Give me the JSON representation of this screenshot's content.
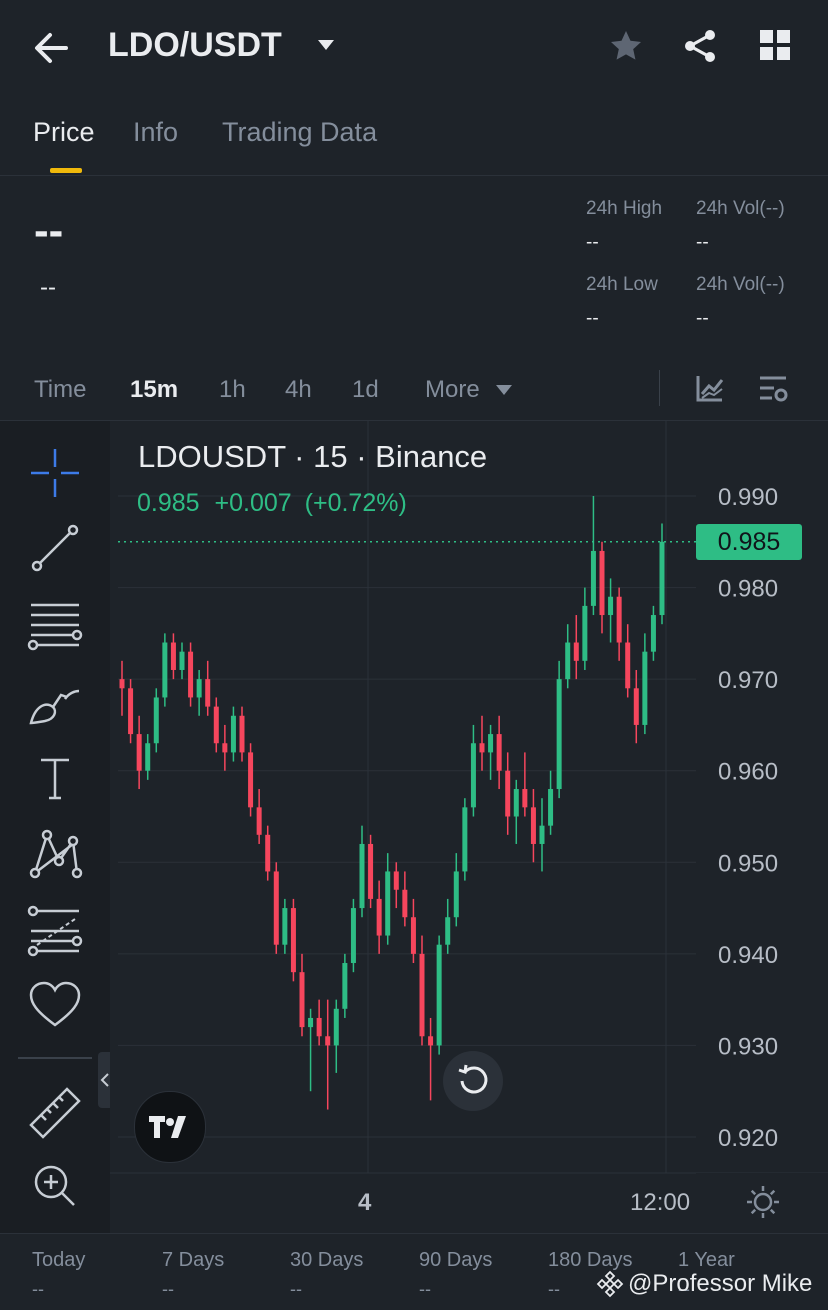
{
  "header": {
    "pair": "LDO/USDT",
    "icons": [
      "back-arrow-icon",
      "dropdown-caret-icon",
      "star-icon",
      "share-icon",
      "grid-icon"
    ]
  },
  "tabs": [
    {
      "label": "Price",
      "active": true
    },
    {
      "label": "Info",
      "active": false
    },
    {
      "label": "Trading Data",
      "active": false
    }
  ],
  "stats": {
    "price": "--",
    "change": "--",
    "high_label": "24h High",
    "high_value": "--",
    "vol1_label": "24h Vol(--)",
    "vol1_value": "--",
    "low_label": "24h Low",
    "low_value": "--",
    "vol2_label": "24h Vol(--)",
    "vol2_value": "--"
  },
  "intervals": [
    {
      "label": "Time",
      "active": false
    },
    {
      "label": "15m",
      "active": true
    },
    {
      "label": "1h",
      "active": false
    },
    {
      "label": "4h",
      "active": false
    },
    {
      "label": "1d",
      "active": false
    },
    {
      "label": "More",
      "active": false
    }
  ],
  "chart": {
    "symbol_line": "LDOUSDT · 15 · Binance",
    "last": "0.985",
    "change": "+0.007",
    "change_pct": "(+0.72%)",
    "price_tag": "0.985",
    "x_labels": [
      "4",
      "12:00"
    ],
    "watermark": "TV"
  },
  "chart_data": {
    "type": "candlestick",
    "title": "LDOUSDT · 15 · Binance",
    "ylim": [
      0.915,
      0.993
    ],
    "yticks": [
      "0.990",
      "0.980",
      "0.970",
      "0.960",
      "0.950",
      "0.940",
      "0.930",
      "0.920"
    ],
    "x_ticks": [
      "4",
      "12:00"
    ],
    "last_price": 0.985,
    "up_color": "#2ebd85",
    "down_color": "#f6465d",
    "candles": [
      [
        0.97,
        0.972,
        0.966,
        0.969
      ],
      [
        0.969,
        0.97,
        0.963,
        0.964
      ],
      [
        0.964,
        0.966,
        0.958,
        0.96
      ],
      [
        0.96,
        0.964,
        0.959,
        0.963
      ],
      [
        0.963,
        0.969,
        0.962,
        0.968
      ],
      [
        0.968,
        0.975,
        0.967,
        0.974
      ],
      [
        0.974,
        0.975,
        0.97,
        0.971
      ],
      [
        0.971,
        0.974,
        0.97,
        0.973
      ],
      [
        0.973,
        0.974,
        0.967,
        0.968
      ],
      [
        0.968,
        0.971,
        0.966,
        0.97
      ],
      [
        0.97,
        0.972,
        0.966,
        0.967
      ],
      [
        0.967,
        0.968,
        0.962,
        0.963
      ],
      [
        0.963,
        0.965,
        0.96,
        0.962
      ],
      [
        0.962,
        0.967,
        0.961,
        0.966
      ],
      [
        0.966,
        0.967,
        0.961,
        0.962
      ],
      [
        0.962,
        0.963,
        0.955,
        0.956
      ],
      [
        0.956,
        0.958,
        0.952,
        0.953
      ],
      [
        0.953,
        0.954,
        0.948,
        0.949
      ],
      [
        0.949,
        0.95,
        0.94,
        0.941
      ],
      [
        0.941,
        0.946,
        0.94,
        0.945
      ],
      [
        0.945,
        0.946,
        0.937,
        0.938
      ],
      [
        0.938,
        0.94,
        0.931,
        0.932
      ],
      [
        0.932,
        0.934,
        0.925,
        0.933
      ],
      [
        0.933,
        0.935,
        0.93,
        0.931
      ],
      [
        0.931,
        0.935,
        0.923,
        0.93
      ],
      [
        0.93,
        0.935,
        0.927,
        0.934
      ],
      [
        0.934,
        0.94,
        0.933,
        0.939
      ],
      [
        0.939,
        0.946,
        0.938,
        0.945
      ],
      [
        0.945,
        0.954,
        0.944,
        0.952
      ],
      [
        0.952,
        0.953,
        0.945,
        0.946
      ],
      [
        0.946,
        0.948,
        0.94,
        0.942
      ],
      [
        0.942,
        0.951,
        0.941,
        0.949
      ],
      [
        0.949,
        0.95,
        0.945,
        0.947
      ],
      [
        0.947,
        0.949,
        0.943,
        0.944
      ],
      [
        0.944,
        0.946,
        0.939,
        0.94
      ],
      [
        0.94,
        0.942,
        0.93,
        0.931
      ],
      [
        0.931,
        0.933,
        0.924,
        0.93
      ],
      [
        0.93,
        0.942,
        0.929,
        0.941
      ],
      [
        0.941,
        0.946,
        0.94,
        0.944
      ],
      [
        0.944,
        0.951,
        0.943,
        0.949
      ],
      [
        0.949,
        0.957,
        0.948,
        0.956
      ],
      [
        0.956,
        0.965,
        0.955,
        0.963
      ],
      [
        0.963,
        0.966,
        0.96,
        0.962
      ],
      [
        0.962,
        0.965,
        0.959,
        0.964
      ],
      [
        0.964,
        0.966,
        0.958,
        0.96
      ],
      [
        0.96,
        0.962,
        0.953,
        0.955
      ],
      [
        0.955,
        0.959,
        0.952,
        0.958
      ],
      [
        0.958,
        0.962,
        0.955,
        0.956
      ],
      [
        0.956,
        0.958,
        0.95,
        0.952
      ],
      [
        0.952,
        0.957,
        0.949,
        0.954
      ],
      [
        0.954,
        0.96,
        0.953,
        0.958
      ],
      [
        0.958,
        0.972,
        0.957,
        0.97
      ],
      [
        0.97,
        0.976,
        0.969,
        0.974
      ],
      [
        0.974,
        0.977,
        0.97,
        0.972
      ],
      [
        0.972,
        0.98,
        0.971,
        0.978
      ],
      [
        0.978,
        0.99,
        0.977,
        0.984
      ],
      [
        0.984,
        0.985,
        0.975,
        0.977
      ],
      [
        0.977,
        0.981,
        0.974,
        0.979
      ],
      [
        0.979,
        0.98,
        0.972,
        0.974
      ],
      [
        0.974,
        0.976,
        0.968,
        0.969
      ],
      [
        0.969,
        0.971,
        0.963,
        0.965
      ],
      [
        0.965,
        0.975,
        0.964,
        0.973
      ],
      [
        0.973,
        0.978,
        0.972,
        0.977
      ],
      [
        0.977,
        0.987,
        0.976,
        0.985
      ]
    ]
  },
  "bottom": {
    "periods": [
      {
        "label": "Today",
        "value": "--"
      },
      {
        "label": "7 Days",
        "value": "--"
      },
      {
        "label": "30 Days",
        "value": "--"
      },
      {
        "label": "90 Days",
        "value": "--"
      },
      {
        "label": "180 Days",
        "value": "--"
      },
      {
        "label": "1 Year",
        "value": "--"
      }
    ],
    "watermark": "@Professor Mike"
  },
  "colors": {
    "accent": "#f0b90b",
    "up": "#2ebd85",
    "down": "#f6465d",
    "bg": "#1e2329"
  }
}
